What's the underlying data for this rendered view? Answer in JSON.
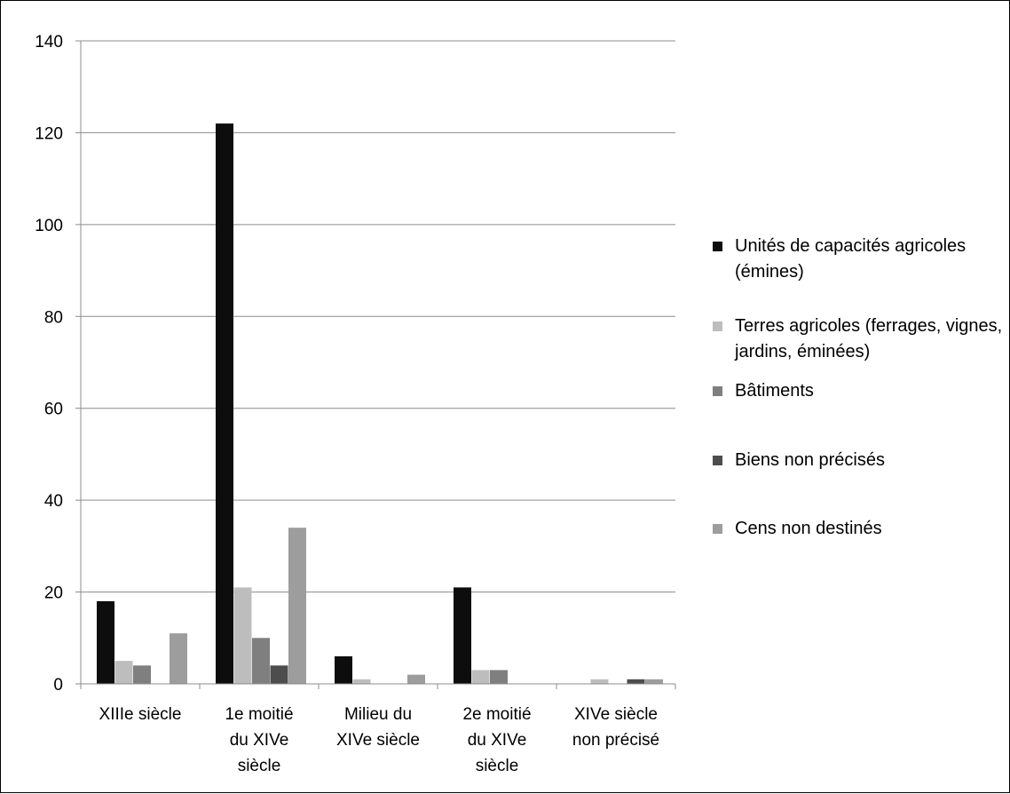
{
  "chart_data": {
    "type": "bar",
    "title": "",
    "xlabel": "",
    "ylabel": "",
    "ylim": [
      0,
      140
    ],
    "yticks": [
      0,
      20,
      40,
      60,
      80,
      100,
      120,
      140
    ],
    "grid": true,
    "legend_position": "right",
    "categories": [
      [
        "XIIIe siècle"
      ],
      [
        "1e moitié",
        "du XIVe",
        "siècle"
      ],
      [
        "Milieu du",
        "XIVe siècle"
      ],
      [
        "2e moitié",
        "du XIVe",
        "siècle"
      ],
      [
        "XIVe siècle",
        "non précisé"
      ]
    ],
    "series": [
      {
        "name": "Unités de capacités agricoles (émines)",
        "color": "#0d0d0d",
        "values": [
          18,
          122,
          6,
          21,
          0
        ]
      },
      {
        "name": "Terres agricoles (ferrages, vignes, jardins, éminées)",
        "color": "#bdbdbd",
        "values": [
          5,
          21,
          1,
          3,
          1
        ]
      },
      {
        "name": "Bâtiments",
        "color": "#7f7f7f",
        "values": [
          4,
          10,
          0,
          3,
          0
        ]
      },
      {
        "name": "Biens non précisés",
        "color": "#4d4d4d",
        "values": [
          0,
          4,
          0,
          0,
          1
        ]
      },
      {
        "name": "Cens non destinés",
        "color": "#9d9d9d",
        "values": [
          11,
          34,
          2,
          0,
          1
        ]
      }
    ]
  }
}
